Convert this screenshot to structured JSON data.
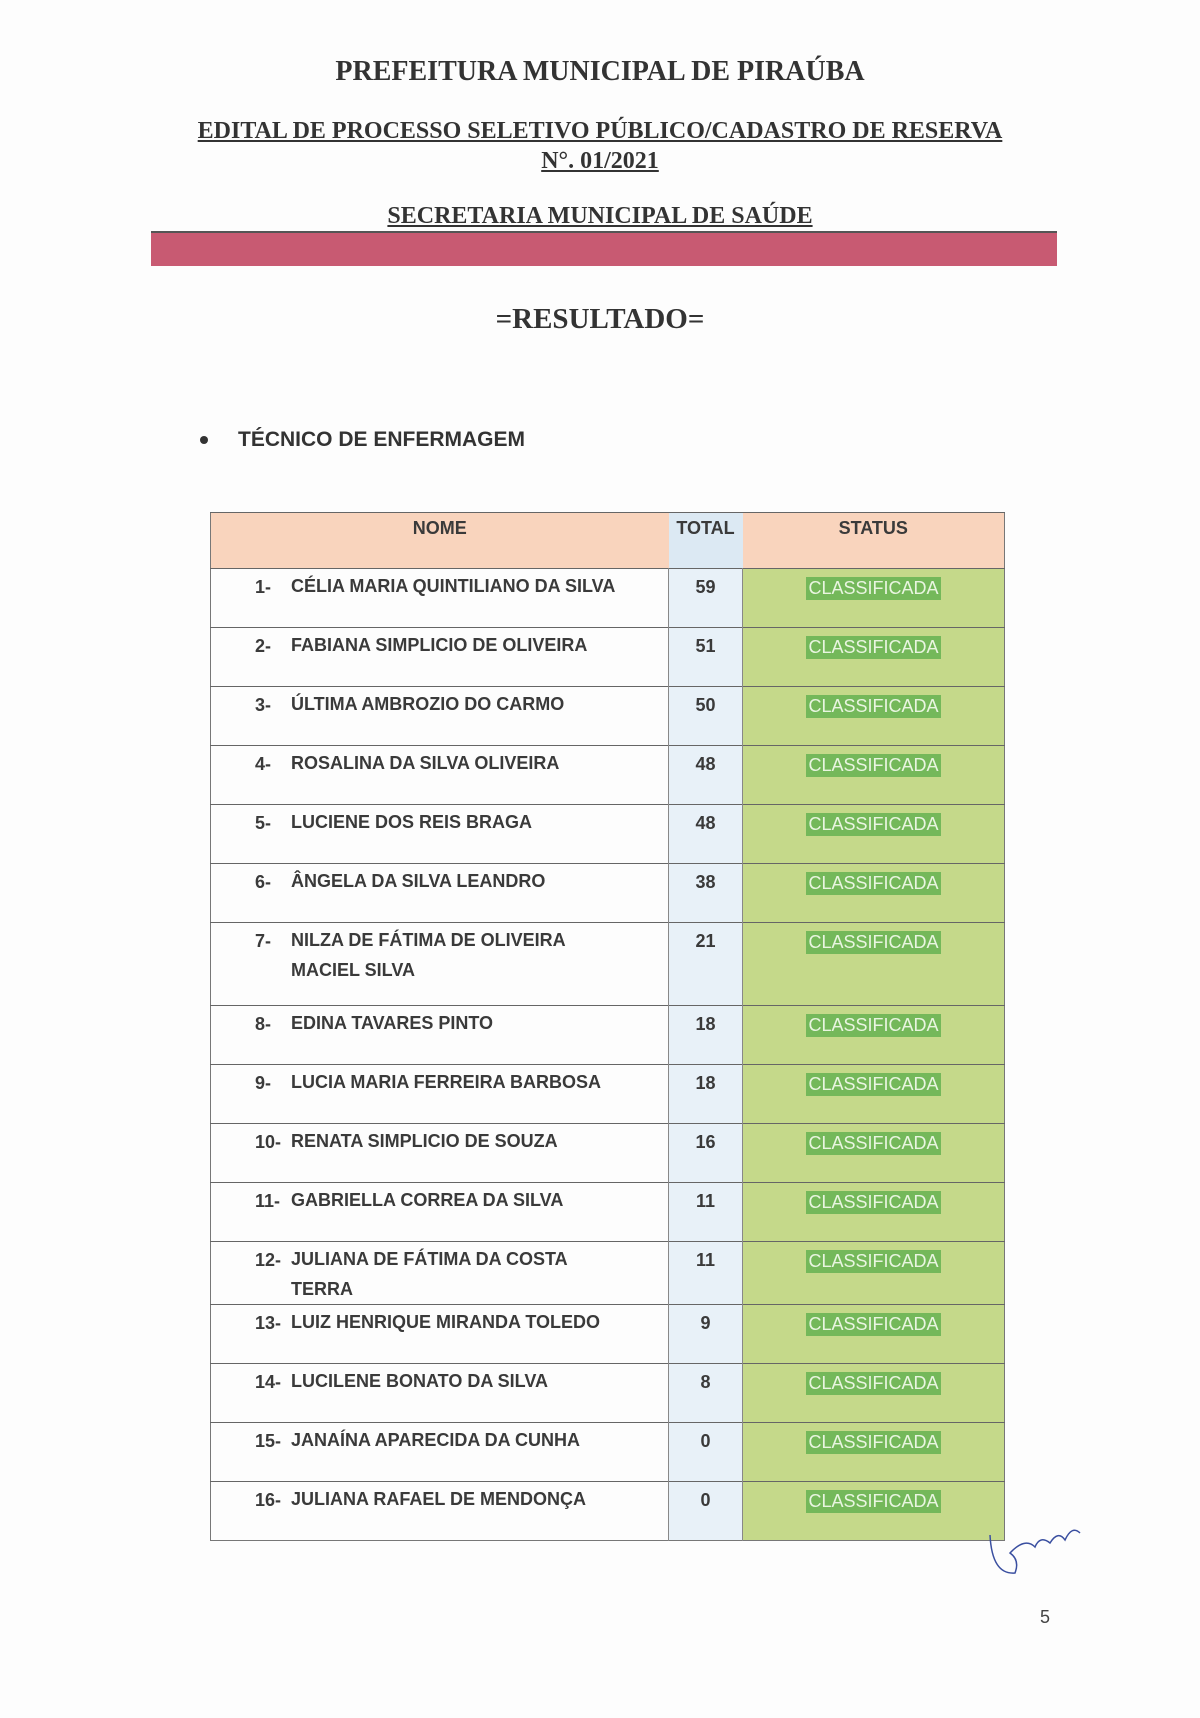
{
  "header": {
    "title": "PREFEITURA MUNICIPAL DE PIRAÚBA",
    "edital": "EDITAL DE PROCESSO SELETIVO PÚBLICO/CADASTRO DE RESERVA",
    "numero": "N°. 01/2021",
    "secretaria": "SECRETARIA MUNICIPAL DE SAÚDE",
    "banner_color": "#c85a72",
    "resultado": "=RESULTADO="
  },
  "section": "TÉCNICO DE ENFERMAGEM",
  "table": {
    "headers": [
      "NOME",
      "TOTAL",
      "STATUS"
    ],
    "rows": [
      {
        "n": "1-",
        "name": "CÉLIA MARIA QUINTILIANO DA SILVA",
        "total": "59",
        "status": "CLASSIFICADA"
      },
      {
        "n": "2-",
        "name": "FABIANA SIMPLICIO DE OLIVEIRA",
        "total": "51",
        "status": "CLASSIFICADA"
      },
      {
        "n": "3-",
        "name": "ÚLTIMA AMBROZIO DO CARMO",
        "total": "50",
        "status": "CLASSIFICADA"
      },
      {
        "n": "4-",
        "name": "ROSALINA DA SILVA OLIVEIRA",
        "total": "48",
        "status": "CLASSIFICADA"
      },
      {
        "n": "5-",
        "name": "LUCIENE DOS REIS BRAGA",
        "total": "48",
        "status": "CLASSIFICADA"
      },
      {
        "n": "6-",
        "name": "ÂNGELA DA SILVA LEANDRO",
        "total": "38",
        "status": "CLASSIFICADA"
      },
      {
        "n": "7-",
        "name": "NILZA DE FÁTIMA DE OLIVEIRA MACIEL SILVA",
        "total": "21",
        "status": "CLASSIFICADA"
      },
      {
        "n": "8-",
        "name": "EDINA TAVARES PINTO",
        "total": "18",
        "status": "CLASSIFICADA"
      },
      {
        "n": "9-",
        "name": "LUCIA MARIA FERREIRA BARBOSA",
        "total": "18",
        "status": "CLASSIFICADA"
      },
      {
        "n": "10-",
        "name": "RENATA SIMPLICIO DE SOUZA",
        "total": "16",
        "status": "CLASSIFICADA"
      },
      {
        "n": "11-",
        "name": "GABRIELLA CORREA DA SILVA",
        "total": "11",
        "status": "CLASSIFICADA"
      },
      {
        "n": "12-",
        "name": "JULIANA DE FÁTIMA DA COSTA TERRA",
        "total": "11",
        "status": "CLASSIFICADA"
      },
      {
        "n": "13-",
        "name": "LUIZ HENRIQUE MIRANDA TOLEDO",
        "total": "9",
        "status": "CLASSIFICADA"
      },
      {
        "n": "14-",
        "name": "LUCILENE BONATO DA SILVA",
        "total": "8",
        "status": "CLASSIFICADA"
      },
      {
        "n": "15-",
        "name": "JANAÍNA APARECIDA DA CUNHA",
        "total": "0",
        "status": "CLASSIFICADA"
      },
      {
        "n": "16-",
        "name": "JULIANA RAFAEL DE MENDONÇA",
        "total": "0",
        "status": "CLASSIFICADA"
      }
    ]
  },
  "page_number": "5"
}
